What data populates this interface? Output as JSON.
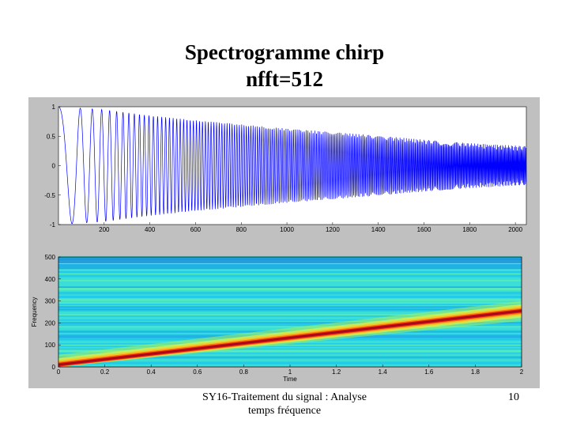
{
  "slide": {
    "title_line1": "Spectrogramme chirp",
    "title_line2": "nfft=512",
    "footer_line1": "SY16-Traitement du signal : Analyse",
    "footer_line2": "temps fréquence",
    "page_number": "10"
  },
  "colors": {
    "panel_bg": "#c0c0c0",
    "signal_line": "#0000ff"
  },
  "chart_data": [
    {
      "type": "line",
      "title": "",
      "xlabel": "",
      "ylabel": "",
      "xlim": [
        0,
        2048
      ],
      "ylim": [
        -1,
        1
      ],
      "xticks": [
        200,
        400,
        600,
        800,
        1000,
        1200,
        1400,
        1600,
        1800,
        2000
      ],
      "yticks": [
        1,
        0.5,
        0,
        -0.5,
        -1
      ],
      "series": [
        {
          "description_values": "chirp with frequency increasing linearly; envelope decays",
          "x": [
            0,
            200,
            400,
            600,
            800,
            1000,
            1200,
            1400,
            1600,
            1800,
            2048
          ],
          "envelope": [
            1.0,
            0.95,
            0.85,
            0.77,
            0.7,
            0.63,
            0.57,
            0.51,
            0.44,
            0.38,
            0.33
          ]
        }
      ]
    },
    {
      "type": "heatmap",
      "title": "",
      "xlabel": "Time",
      "ylabel": "Frequency",
      "xlim": [
        0,
        2
      ],
      "ylim": [
        0,
        500
      ],
      "xticks": [
        0,
        0.2,
        0.4,
        0.6,
        0.8,
        1,
        1.2,
        1.4,
        1.6,
        1.8,
        2
      ],
      "yticks": [
        0,
        100,
        200,
        300,
        400,
        500
      ],
      "ridge": {
        "x": [
          0,
          2
        ],
        "y": [
          10,
          255
        ]
      }
    }
  ]
}
